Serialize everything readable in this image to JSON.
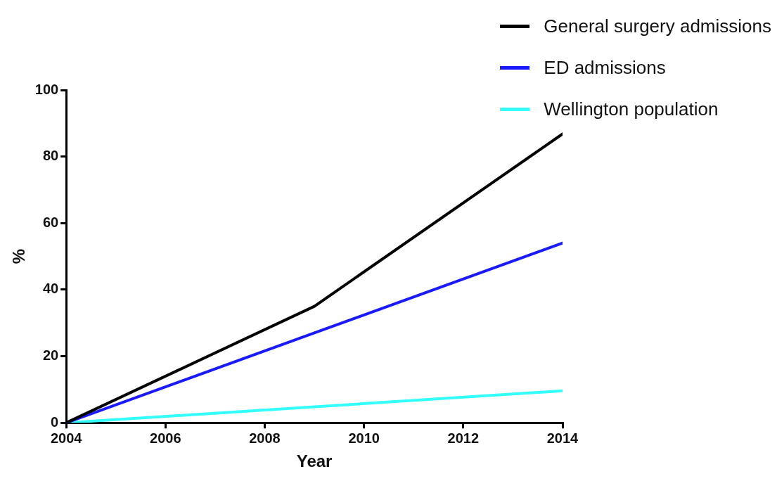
{
  "chart_data": {
    "type": "line",
    "xlabel": "Year",
    "ylabel": "%",
    "x": [
      2004,
      2009,
      2014
    ],
    "xlim": [
      2004,
      2014
    ],
    "xticks": [
      2004,
      2006,
      2008,
      2010,
      2012,
      2014
    ],
    "ylim": [
      0,
      100
    ],
    "yticks": [
      0,
      20,
      40,
      60,
      80,
      100
    ],
    "legend": "top right",
    "marker": "none",
    "line_style": "solid",
    "series": [
      {
        "name": "General surgery admissions",
        "color": "#000000",
        "values": [
          0,
          35,
          86.8
        ]
      },
      {
        "name": "ED admissions",
        "color": "#1a1aff",
        "values": [
          0,
          27,
          54
        ]
      },
      {
        "name": "Wellington population",
        "color": "#33ffff",
        "values": [
          0,
          4.8,
          9.6
        ]
      }
    ]
  }
}
